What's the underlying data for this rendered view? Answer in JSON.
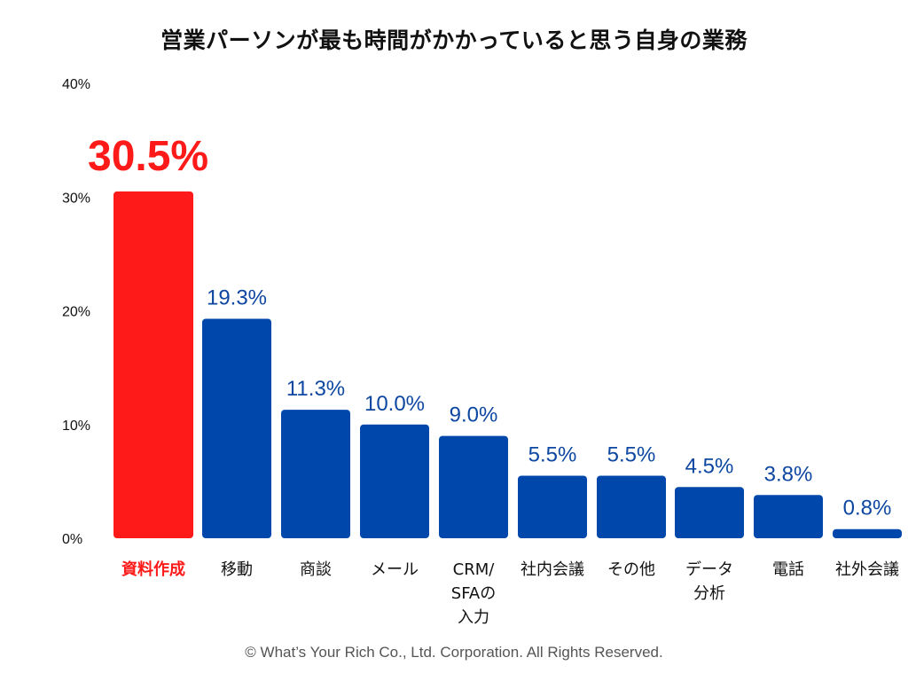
{
  "chart_data": {
    "type": "bar",
    "title": "営業パーソンが最も時間がかかっていると思う自身の業務",
    "categories": [
      [
        "資料作成"
      ],
      [
        "移動"
      ],
      [
        "商談"
      ],
      [
        "メール"
      ],
      [
        "CRM/",
        "SFAの",
        "入力"
      ],
      [
        "社内会議"
      ],
      [
        "その他"
      ],
      [
        "データ",
        "分析"
      ],
      [
        "電話"
      ],
      [
        "社外会議"
      ]
    ],
    "values": [
      30.5,
      19.3,
      11.3,
      10.0,
      9.0,
      5.5,
      5.5,
      4.5,
      3.8,
      0.8
    ],
    "value_labels": [
      "30.5%",
      "19.3%",
      "11.3%",
      "10.0%",
      "9.0%",
      "5.5%",
      "5.5%",
      "4.5%",
      "3.8%",
      "0.8%"
    ],
    "highlight_index": 0,
    "ylim": [
      0,
      40
    ],
    "yticks": [
      0,
      10,
      20,
      30,
      40
    ],
    "ytick_labels": [
      "0%",
      "10%",
      "20%",
      "30%",
      "40%"
    ],
    "xlabel": "",
    "ylabel": "",
    "grid": false,
    "colors": {
      "highlight": "#ff1a1a",
      "bar": "#0047ab",
      "value_label": "#0d47a1",
      "highlight_label": "#ff1a1a",
      "tick_text": "#111111",
      "category_text": "#111111"
    }
  },
  "footer": {
    "copyright": "© What’s Your Rich Co., Ltd. Corporation. All Rights Reserved."
  }
}
